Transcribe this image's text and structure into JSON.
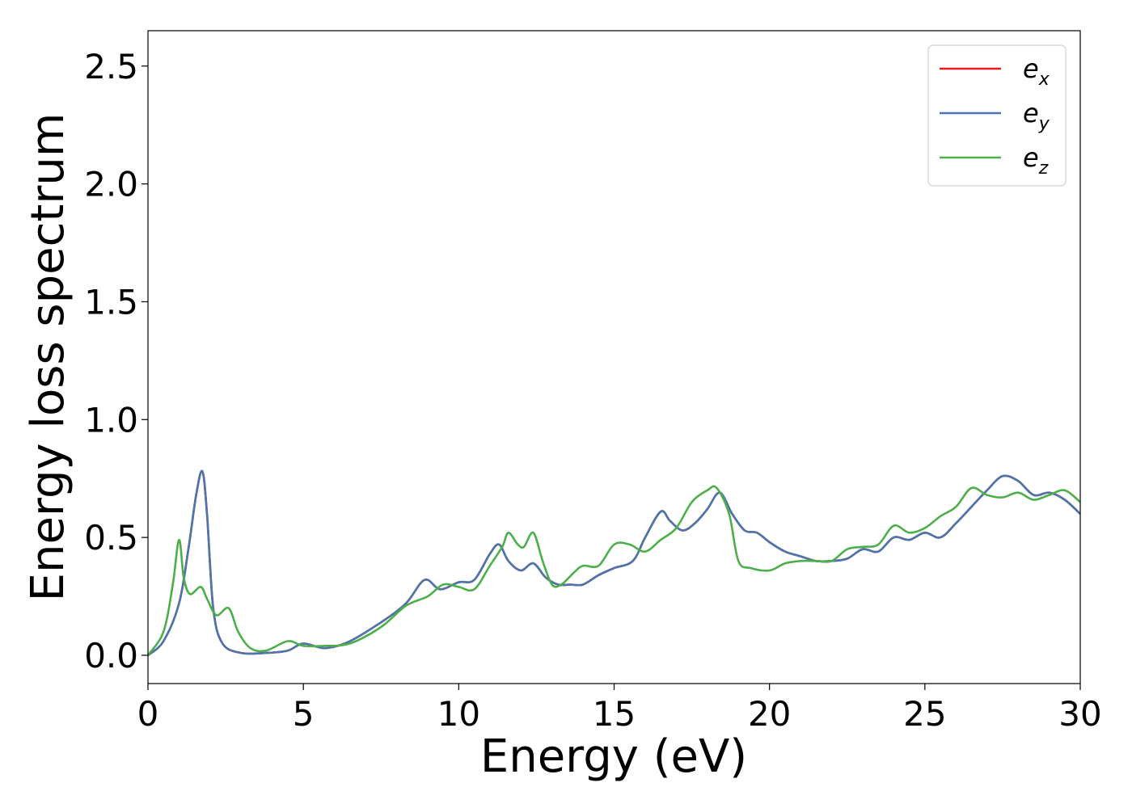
{
  "chart_data": {
    "type": "line",
    "xlabel": "Energy (eV)",
    "ylabel": "Energy loss spectrum",
    "xlim": [
      0,
      30
    ],
    "ylim": [
      -0.12,
      2.65
    ],
    "xticks": [
      0,
      5,
      10,
      15,
      20,
      25,
      30
    ],
    "xtick_labels": [
      "0",
      "5",
      "10",
      "15",
      "20",
      "25",
      "30"
    ],
    "yticks": [
      0.0,
      0.5,
      1.0,
      1.5,
      2.0,
      2.5
    ],
    "ytick_labels": [
      "0.0",
      "0.5",
      "1.0",
      "1.5",
      "2.0",
      "2.5"
    ],
    "grid": false,
    "legend_position": "top-right",
    "series": [
      {
        "name": "e_x",
        "legend_base": "e",
        "legend_sub": "x",
        "color": "#e41a1c",
        "x": [
          0,
          0.5,
          1.0,
          1.3,
          1.55,
          1.75,
          1.9,
          2.1,
          2.4,
          3.0,
          3.8,
          4.5,
          5.0,
          5.7,
          6.5,
          7.5,
          8.3,
          8.9,
          9.4,
          10.0,
          10.5,
          11.0,
          11.3,
          11.6,
          12.0,
          12.4,
          12.8,
          13.2,
          13.6,
          14.0,
          14.5,
          15.0,
          15.6,
          16.0,
          16.5,
          16.8,
          17.2,
          17.6,
          18.0,
          18.4,
          18.8,
          19.2,
          19.6,
          20.0,
          20.5,
          21.0,
          21.5,
          22.0,
          22.5,
          23.0,
          23.5,
          24.0,
          24.5,
          25.0,
          25.5,
          26.0,
          26.5,
          27.0,
          27.5,
          28.0,
          28.5,
          29.0,
          29.5,
          30.0
        ],
        "y": [
          0.0,
          0.06,
          0.22,
          0.45,
          0.68,
          0.78,
          0.6,
          0.2,
          0.05,
          0.01,
          0.01,
          0.02,
          0.05,
          0.03,
          0.06,
          0.14,
          0.22,
          0.32,
          0.28,
          0.31,
          0.32,
          0.43,
          0.47,
          0.4,
          0.36,
          0.39,
          0.33,
          0.3,
          0.3,
          0.3,
          0.34,
          0.37,
          0.4,
          0.5,
          0.61,
          0.57,
          0.53,
          0.56,
          0.62,
          0.69,
          0.6,
          0.53,
          0.52,
          0.48,
          0.44,
          0.42,
          0.4,
          0.4,
          0.41,
          0.45,
          0.44,
          0.5,
          0.49,
          0.52,
          0.5,
          0.56,
          0.63,
          0.7,
          0.76,
          0.74,
          0.68,
          0.69,
          0.66,
          0.6
        ]
      },
      {
        "name": "e_y",
        "legend_base": "e",
        "legend_sub": "y",
        "color": "#4a76ad",
        "x": [
          0,
          0.5,
          1.0,
          1.3,
          1.55,
          1.75,
          1.9,
          2.1,
          2.4,
          3.0,
          3.8,
          4.5,
          5.0,
          5.7,
          6.5,
          7.5,
          8.3,
          8.9,
          9.4,
          10.0,
          10.5,
          11.0,
          11.3,
          11.6,
          12.0,
          12.4,
          12.8,
          13.2,
          13.6,
          14.0,
          14.5,
          15.0,
          15.6,
          16.0,
          16.5,
          16.8,
          17.2,
          17.6,
          18.0,
          18.4,
          18.8,
          19.2,
          19.6,
          20.0,
          20.5,
          21.0,
          21.5,
          22.0,
          22.5,
          23.0,
          23.5,
          24.0,
          24.5,
          25.0,
          25.5,
          26.0,
          26.5,
          27.0,
          27.5,
          28.0,
          28.5,
          29.0,
          29.5,
          30.0
        ],
        "y": [
          0.0,
          0.06,
          0.22,
          0.45,
          0.68,
          0.78,
          0.6,
          0.2,
          0.05,
          0.01,
          0.01,
          0.02,
          0.05,
          0.03,
          0.06,
          0.14,
          0.22,
          0.32,
          0.28,
          0.31,
          0.32,
          0.43,
          0.47,
          0.4,
          0.36,
          0.39,
          0.33,
          0.3,
          0.3,
          0.3,
          0.34,
          0.37,
          0.4,
          0.5,
          0.61,
          0.57,
          0.53,
          0.56,
          0.62,
          0.69,
          0.6,
          0.53,
          0.52,
          0.48,
          0.44,
          0.42,
          0.4,
          0.4,
          0.41,
          0.45,
          0.44,
          0.5,
          0.49,
          0.52,
          0.5,
          0.56,
          0.63,
          0.7,
          0.76,
          0.74,
          0.68,
          0.69,
          0.66,
          0.6
        ]
      },
      {
        "name": "e_z",
        "legend_base": "e",
        "legend_sub": "z",
        "color": "#4daf4a",
        "x": [
          0,
          0.5,
          0.8,
          1.0,
          1.15,
          1.35,
          1.7,
          1.9,
          2.2,
          2.6,
          2.9,
          3.3,
          3.8,
          4.5,
          5.0,
          5.7,
          6.5,
          7.5,
          8.3,
          9.0,
          9.5,
          10.0,
          10.5,
          11.0,
          11.4,
          11.6,
          11.9,
          12.1,
          12.4,
          12.7,
          13.0,
          13.3,
          13.7,
          14.0,
          14.5,
          15.0,
          15.5,
          16.0,
          16.5,
          17.0,
          17.5,
          18.0,
          18.3,
          18.7,
          19.0,
          19.4,
          20.0,
          20.5,
          21.0,
          21.5,
          22.0,
          22.5,
          23.0,
          23.5,
          24.0,
          24.5,
          25.0,
          25.5,
          26.0,
          26.5,
          27.0,
          27.5,
          28.0,
          28.5,
          29.0,
          29.5,
          30.0
        ],
        "y": [
          0.0,
          0.1,
          0.3,
          0.49,
          0.33,
          0.26,
          0.29,
          0.24,
          0.17,
          0.2,
          0.1,
          0.03,
          0.02,
          0.06,
          0.04,
          0.04,
          0.05,
          0.12,
          0.21,
          0.25,
          0.3,
          0.29,
          0.28,
          0.38,
          0.46,
          0.52,
          0.47,
          0.46,
          0.52,
          0.4,
          0.3,
          0.3,
          0.35,
          0.38,
          0.38,
          0.47,
          0.47,
          0.44,
          0.49,
          0.54,
          0.65,
          0.7,
          0.71,
          0.6,
          0.4,
          0.37,
          0.36,
          0.39,
          0.4,
          0.4,
          0.4,
          0.45,
          0.46,
          0.47,
          0.55,
          0.52,
          0.54,
          0.59,
          0.63,
          0.71,
          0.68,
          0.67,
          0.69,
          0.66,
          0.68,
          0.7,
          0.65
        ]
      }
    ]
  }
}
